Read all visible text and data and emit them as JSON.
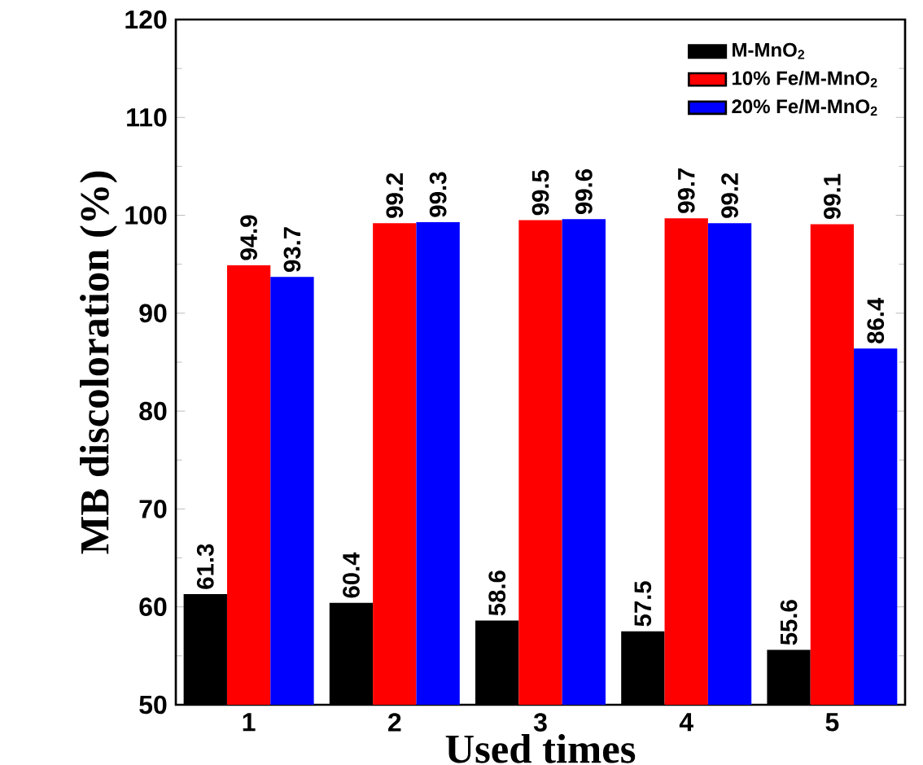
{
  "chart_data": {
    "type": "bar",
    "xlabel": "Used times",
    "ylabel": "MB discoloration (%)",
    "categories": [
      "1",
      "2",
      "3",
      "4",
      "5"
    ],
    "series": [
      {
        "name": "M-MnO$_{2}$",
        "color": "#000000",
        "values": [
          61.3,
          60.4,
          58.6,
          57.5,
          55.6
        ]
      },
      {
        "name": "10% Fe/M-MnO$_{2}$",
        "color": "#ff0000",
        "values": [
          94.9,
          99.2,
          99.5,
          99.7,
          99.1
        ]
      },
      {
        "name": "20% Fe/M-MnO$_{2}$",
        "color": "#0000ff",
        "values": [
          93.7,
          99.3,
          99.6,
          99.2,
          86.4
        ]
      }
    ],
    "ylim": [
      50,
      120
    ],
    "yticks": [
      50,
      60,
      70,
      80,
      90,
      100,
      110,
      120
    ],
    "data_labels": true,
    "legend": "top right"
  }
}
